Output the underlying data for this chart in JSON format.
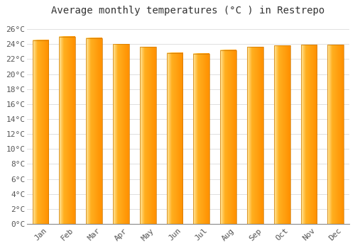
{
  "title": "Average monthly temperatures (°C ) in Restrepo",
  "months": [
    "Jan",
    "Feb",
    "Mar",
    "Apr",
    "May",
    "Jun",
    "Jul",
    "Aug",
    "Sep",
    "Oct",
    "Nov",
    "Dec"
  ],
  "values": [
    24.5,
    25.0,
    24.8,
    24.0,
    23.6,
    22.8,
    22.7,
    23.2,
    23.6,
    23.8,
    23.9,
    23.9
  ],
  "bar_color_left": "#FFE090",
  "bar_color_mid": "#FFA500",
  "bar_color_right": "#FF8C00",
  "ylim": [
    0,
    27
  ],
  "yticks": [
    0,
    2,
    4,
    6,
    8,
    10,
    12,
    14,
    16,
    18,
    20,
    22,
    24,
    26
  ],
  "ytick_labels": [
    "0°C",
    "2°C",
    "4°C",
    "6°C",
    "8°C",
    "10°C",
    "12°C",
    "14°C",
    "16°C",
    "18°C",
    "20°C",
    "22°C",
    "24°C",
    "26°C"
  ],
  "background_color": "#ffffff",
  "grid_color": "#e0e0e0",
  "title_fontsize": 10,
  "tick_fontsize": 8,
  "font_family": "monospace",
  "bar_width": 0.6,
  "n_gradient": 100
}
